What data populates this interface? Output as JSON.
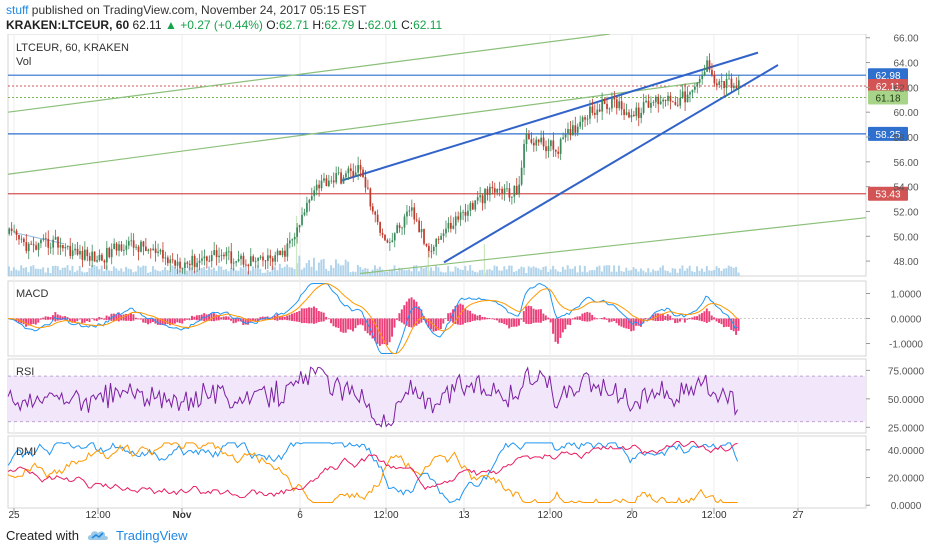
{
  "header": {
    "author": "stuff",
    "published_text": " published on TradingView.com, November 24, 2017 05:15 EST",
    "symbol": "KRAKEN:LTCEUR, 60",
    "last": "62.11",
    "change": "+0.27 (+0.44%)",
    "o_label": "O:",
    "o_value": "62.71",
    "h_label": "H:",
    "h_value": "62.79",
    "l_label": "L:",
    "l_value": "62.01",
    "c_label": "C:",
    "c_value": "62.11",
    "up_arrow": "▲"
  },
  "footer": {
    "created_with": "Created with",
    "brand": "TradingView",
    "logo_icon": "tradingview-cloud-icon"
  },
  "colors": {
    "price_line": "#3a6fd6",
    "candle_up": "#3a8a5a",
    "candle_down": "#c0392b",
    "volume": "#9ec9e6",
    "macd_line": "#2196f3",
    "signal_line": "#ff9800",
    "histogram": "#e91e63",
    "rsi_line": "#7b1fa2",
    "rsi_band": "#f2e6fb",
    "dmi_plus": "#2196f3",
    "dmi_minus": "#ff9800",
    "adx": "#e91e63",
    "level_blue": "#2f6fce",
    "level_red": "#d35454",
    "level_green_dotted": "#79b94f",
    "trend_green": "#8cc07a",
    "channel_blue": "#3163c9",
    "label_green_bg": "#a8d48a"
  },
  "chart_data": [
    {
      "type": "candlestick",
      "title": "LTCEUR, 60, KRAKEN",
      "subtitle": "Vol",
      "y_ticks": [
        "66.00",
        "64.00",
        "62.00",
        "60.00",
        "58.00",
        "56.00",
        "54.00",
        "52.00",
        "50.00",
        "48.00"
      ],
      "ylim": [
        46.8,
        66.3
      ],
      "x_ticks": [
        "25",
        "12:00",
        "Nov",
        "6",
        "12:00",
        "13",
        "12:00",
        "20",
        "12:00",
        "27"
      ],
      "price_labels": [
        "62.98",
        "62.11",
        "61.18",
        "58.25",
        "53.43"
      ],
      "levels": [
        {
          "value": 62.98,
          "style": "solid",
          "color": "blue"
        },
        {
          "value": 62.11,
          "style": "dotted",
          "color": "red"
        },
        {
          "value": 61.18,
          "style": "dotted",
          "color": "green"
        },
        {
          "value": 58.25,
          "style": "solid",
          "color": "blue"
        },
        {
          "value": 53.43,
          "style": "solid",
          "color": "red"
        }
      ],
      "close_anchors": [
        [
          0,
          50.2
        ],
        [
          0.03,
          49.0
        ],
        [
          0.06,
          49.6
        ],
        [
          0.09,
          48.6
        ],
        [
          0.12,
          48.2
        ],
        [
          0.15,
          49.4
        ],
        [
          0.18,
          49.0
        ],
        [
          0.21,
          48.0
        ],
        [
          0.24,
          47.9
        ],
        [
          0.27,
          48.6
        ],
        [
          0.3,
          48.2
        ],
        [
          0.33,
          47.9
        ],
        [
          0.36,
          48.5
        ],
        [
          0.38,
          50.5
        ],
        [
          0.4,
          54.0
        ],
        [
          0.42,
          54.6
        ],
        [
          0.44,
          54.8
        ],
        [
          0.46,
          55.5
        ],
        [
          0.47,
          54.0
        ],
        [
          0.48,
          51.5
        ],
        [
          0.5,
          49.5
        ],
        [
          0.51,
          50.5
        ],
        [
          0.53,
          52.0
        ],
        [
          0.55,
          49.0
        ],
        [
          0.57,
          50.2
        ],
        [
          0.59,
          51.5
        ],
        [
          0.61,
          52.5
        ],
        [
          0.63,
          53.5
        ],
        [
          0.65,
          53.8
        ],
        [
          0.66,
          53.2
        ],
        [
          0.67,
          54.0
        ],
        [
          0.68,
          58.0
        ],
        [
          0.7,
          57.5
        ],
        [
          0.72,
          57.0
        ],
        [
          0.74,
          58.5
        ],
        [
          0.76,
          60.0
        ],
        [
          0.78,
          60.5
        ],
        [
          0.8,
          60.8
        ],
        [
          0.82,
          59.6
        ],
        [
          0.84,
          60.6
        ],
        [
          0.86,
          61.2
        ],
        [
          0.88,
          61.0
        ],
        [
          0.9,
          61.5
        ],
        [
          0.92,
          64.0
        ],
        [
          0.93,
          62.5
        ],
        [
          0.95,
          62.3
        ],
        [
          0.96,
          62.1
        ]
      ]
    },
    {
      "type": "line",
      "title": "MACD",
      "y_ticks": [
        "1.0000",
        "0.0000",
        "-1.0000"
      ],
      "ylim": [
        -1.5,
        1.5
      ]
    },
    {
      "type": "line",
      "title": "RSI",
      "y_ticks": [
        "75.0000",
        "50.0000",
        "25.0000"
      ],
      "ylim": [
        20,
        85
      ],
      "bands": [
        30,
        70
      ]
    },
    {
      "type": "line",
      "title": "DMI",
      "y_ticks": [
        "40.0000",
        "20.0000",
        "0.0000"
      ],
      "ylim": [
        -2,
        50
      ]
    }
  ]
}
